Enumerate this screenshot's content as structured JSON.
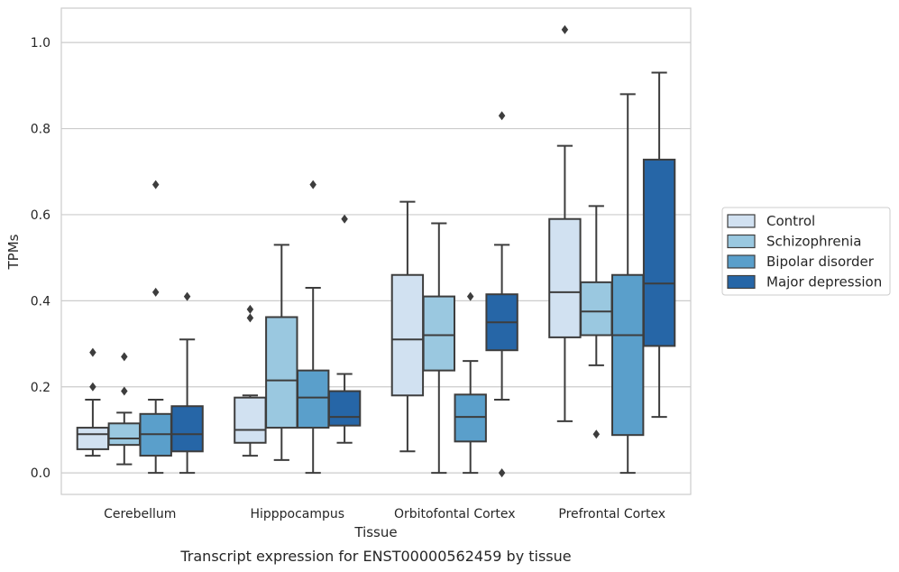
{
  "caption": "Transcript expression for ENST00000562459 by tissue",
  "chart_data": {
    "type": "box",
    "title": "",
    "xlabel": "Tissue",
    "ylabel": "TPMs",
    "categories": [
      "Cerebellum",
      "Hipppocampus",
      "Orbitofontal Cortex",
      "Prefrontal Cortex"
    ],
    "ylim": [
      -0.05,
      1.08
    ],
    "yticks": [
      0.0,
      0.2,
      0.4,
      0.6,
      0.8,
      1.0
    ],
    "ytick_labels": [
      "0.0",
      "0.2",
      "0.4",
      "0.6",
      "0.8",
      "1.0"
    ],
    "grid": "horizontal",
    "legend_position": "right",
    "series": [
      {
        "name": "Control",
        "color": "#d1e1f1",
        "boxes": [
          {
            "whislo": 0.04,
            "q1": 0.055,
            "med": 0.09,
            "q3": 0.105,
            "whishi": 0.17,
            "fliers": [
              0.2,
              0.28
            ]
          },
          {
            "whislo": 0.04,
            "q1": 0.07,
            "med": 0.1,
            "q3": 0.175,
            "whishi": 0.18,
            "fliers": [
              0.36,
              0.38
            ]
          },
          {
            "whislo": 0.05,
            "q1": 0.18,
            "med": 0.31,
            "q3": 0.46,
            "whishi": 0.63,
            "fliers": []
          },
          {
            "whislo": 0.12,
            "q1": 0.315,
            "med": 0.42,
            "q3": 0.59,
            "whishi": 0.76,
            "fliers": [
              1.03
            ]
          }
        ]
      },
      {
        "name": "Schizophrenia",
        "color": "#9ac8e0",
        "boxes": [
          {
            "whislo": 0.02,
            "q1": 0.065,
            "med": 0.08,
            "q3": 0.115,
            "whishi": 0.14,
            "fliers": [
              0.19,
              0.27
            ]
          },
          {
            "whislo": 0.03,
            "q1": 0.105,
            "med": 0.215,
            "q3": 0.362,
            "whishi": 0.53,
            "fliers": []
          },
          {
            "whislo": 0.0,
            "q1": 0.238,
            "med": 0.32,
            "q3": 0.41,
            "whishi": 0.58,
            "fliers": []
          },
          {
            "whislo": 0.25,
            "q1": 0.32,
            "med": 0.375,
            "q3": 0.443,
            "whishi": 0.62,
            "fliers": [
              0.09
            ]
          }
        ]
      },
      {
        "name": "Bipolar disorder",
        "color": "#5a9fcb",
        "boxes": [
          {
            "whislo": 0.0,
            "q1": 0.04,
            "med": 0.09,
            "q3": 0.137,
            "whishi": 0.17,
            "fliers": [
              0.42,
              0.67
            ]
          },
          {
            "whislo": 0.0,
            "q1": 0.105,
            "med": 0.175,
            "q3": 0.238,
            "whishi": 0.43,
            "fliers": [
              0.67
            ]
          },
          {
            "whislo": 0.0,
            "q1": 0.073,
            "med": 0.13,
            "q3": 0.182,
            "whishi": 0.26,
            "fliers": [
              0.41
            ]
          },
          {
            "whislo": 0.0,
            "q1": 0.088,
            "med": 0.32,
            "q3": 0.46,
            "whishi": 0.88,
            "fliers": []
          }
        ]
      },
      {
        "name": "Major depression",
        "color": "#2666a7",
        "boxes": [
          {
            "whislo": 0.0,
            "q1": 0.05,
            "med": 0.09,
            "q3": 0.155,
            "whishi": 0.31,
            "fliers": [
              0.41
            ]
          },
          {
            "whislo": 0.07,
            "q1": 0.11,
            "med": 0.13,
            "q3": 0.19,
            "whishi": 0.23,
            "fliers": [
              0.59
            ]
          },
          {
            "whislo": 0.17,
            "q1": 0.285,
            "med": 0.35,
            "q3": 0.415,
            "whishi": 0.53,
            "fliers": [
              0.0,
              0.83
            ]
          },
          {
            "whislo": 0.13,
            "q1": 0.295,
            "med": 0.44,
            "q3": 0.728,
            "whishi": 0.93,
            "fliers": []
          }
        ]
      }
    ]
  }
}
